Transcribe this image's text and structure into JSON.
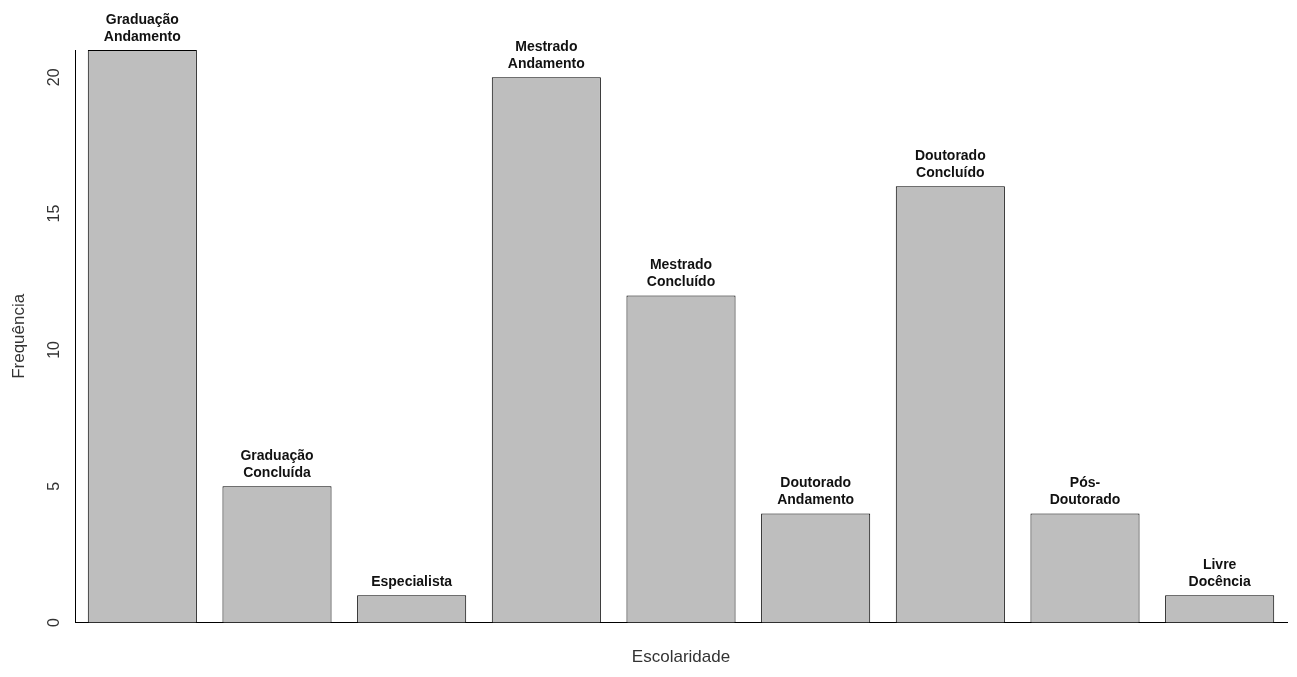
{
  "chart_data": {
    "type": "bar",
    "xlabel": "Escolaridade",
    "ylabel": "Frequência",
    "categories": [
      "Graduação Andamento",
      "Graduação Concluída",
      "Especialista",
      "Mestrado Andamento",
      "Mestrado Concluído",
      "Doutorado Andamento",
      "Doutorado Concluído",
      "Pós-Doutorado",
      "Livre Docência"
    ],
    "values": [
      21,
      5,
      1,
      20,
      12,
      4,
      16,
      4,
      1
    ],
    "color": "#bebebe",
    "ylim": [
      0,
      21
    ],
    "yticks": [
      0,
      5,
      10,
      15,
      20
    ],
    "grid": false,
    "legend": false
  }
}
